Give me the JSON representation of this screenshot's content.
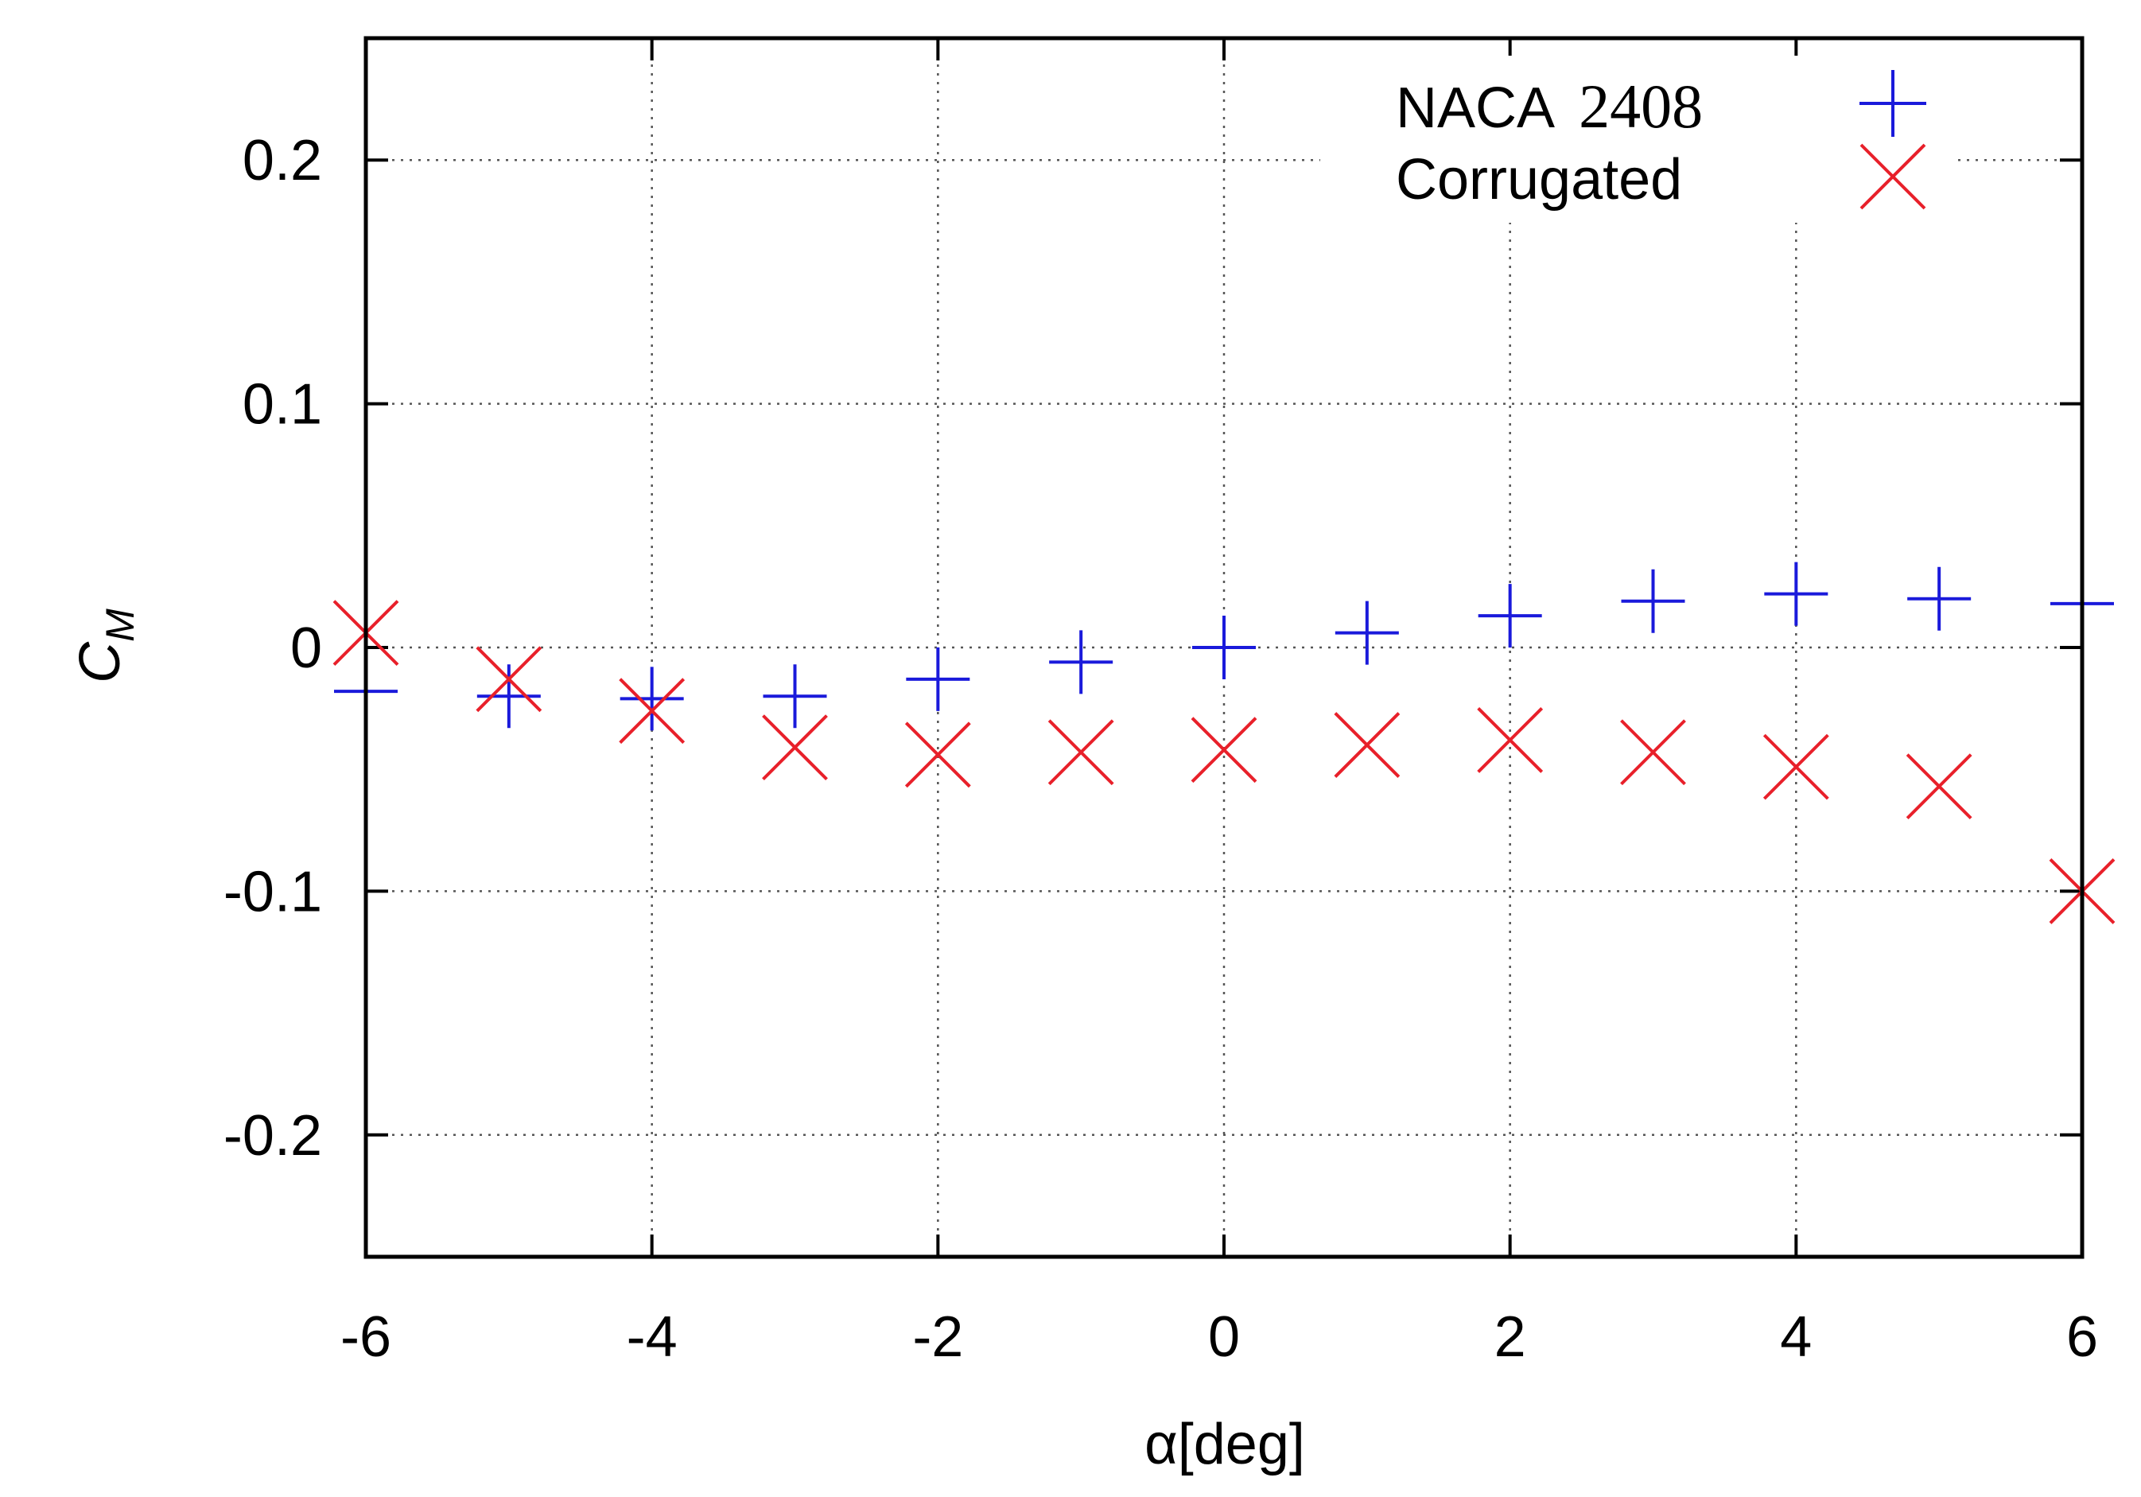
{
  "chart_data": {
    "type": "scatter",
    "title": "",
    "xlabel": "α[deg]",
    "ylabel_main": "C",
    "ylabel_sub": "M",
    "xlim": [
      -6,
      6
    ],
    "ylim": [
      -0.25,
      0.25
    ],
    "x_ticks": [
      -6,
      -4,
      -2,
      0,
      2,
      4,
      6
    ],
    "x_tick_labels": [
      "-6",
      "-4",
      "-2",
      "0",
      "2",
      "4",
      "6"
    ],
    "y_ticks": [
      -0.2,
      -0.1,
      0,
      0.1,
      0.2
    ],
    "y_tick_labels": [
      "-0.2",
      "-0.1",
      "0",
      "0.1",
      "0.2"
    ],
    "grid": true,
    "legend_position": "top-right",
    "series": [
      {
        "name_text": "NACA",
        "name_number": "2408",
        "marker": "plus",
        "color": "#1a1adb",
        "x": [
          -6,
          -5,
          -4,
          -3,
          -2,
          -1,
          0,
          1,
          2,
          3,
          4,
          5,
          6
        ],
        "y": [
          -0.018,
          -0.02,
          -0.021,
          -0.02,
          -0.013,
          -0.006,
          0.0,
          0.006,
          0.013,
          0.019,
          0.022,
          0.02,
          0.018
        ]
      },
      {
        "name_text": "Corrugated",
        "name_number": "",
        "marker": "cross",
        "color": "#e8202a",
        "x": [
          -6,
          -5,
          -4,
          -3,
          -2,
          -1,
          0,
          1,
          2,
          3,
          4,
          5,
          6
        ],
        "y": [
          0.006,
          -0.013,
          -0.026,
          -0.041,
          -0.044,
          -0.043,
          -0.042,
          -0.04,
          -0.038,
          -0.043,
          -0.049,
          -0.057,
          -0.1
        ]
      }
    ]
  }
}
